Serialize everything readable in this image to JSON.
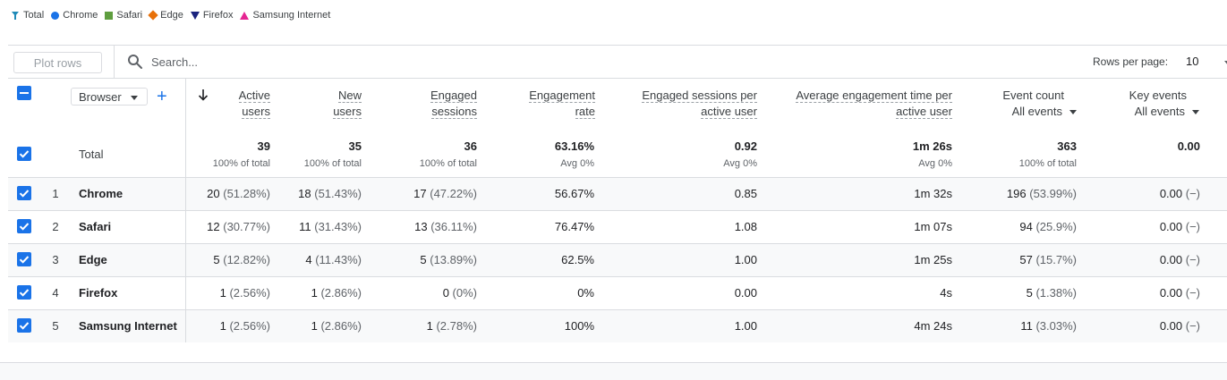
{
  "legend": [
    {
      "label": "Total",
      "marker": "total-pin-icon",
      "color": "#1e8ab8"
    },
    {
      "label": "Chrome",
      "marker": "circle",
      "color": "#1a73e8"
    },
    {
      "label": "Safari",
      "marker": "square",
      "color": "#5f9e3f"
    },
    {
      "label": "Edge",
      "marker": "diamond",
      "color": "#e8710a"
    },
    {
      "label": "Firefox",
      "marker": "triangle-down",
      "color": "#1a237e"
    },
    {
      "label": "Samsung Internet",
      "marker": "triangle-up",
      "color": "#e52592"
    }
  ],
  "toolbar": {
    "plot_rows_label": "Plot rows",
    "search_placeholder": "Search...",
    "rows_per_page_label": "Rows per page:",
    "rows_per_page_value": "10"
  },
  "dimension": {
    "label": "Browser"
  },
  "columns": [
    {
      "line1": "Active",
      "line2": "users"
    },
    {
      "line1": "New",
      "line2": "users"
    },
    {
      "line1": "Engaged",
      "line2": "sessions"
    },
    {
      "line1": "Engagement",
      "line2": "rate"
    },
    {
      "line1": "Engaged sessions per",
      "line2": "active user"
    },
    {
      "line1": "Average engagement time per",
      "line2": "active user"
    },
    {
      "line1": "Event count",
      "select": "All events"
    },
    {
      "line1": "Key events",
      "select": "All events"
    }
  ],
  "totals": {
    "label": "Total",
    "values": [
      "39",
      "35",
      "36",
      "63.16%",
      "0.92",
      "1m 26s",
      "363",
      "0.00"
    ],
    "subs": [
      "100% of total",
      "100% of total",
      "100% of total",
      "Avg 0%",
      "Avg 0%",
      "Avg 0%",
      "100% of total",
      ""
    ]
  },
  "rows": [
    {
      "rank": "1",
      "name": "Chrome",
      "cells": [
        {
          "v": "20",
          "p": "(51.28%)"
        },
        {
          "v": "18",
          "p": "(51.43%)"
        },
        {
          "v": "17",
          "p": "(47.22%)"
        },
        {
          "v": "56.67%",
          "p": ""
        },
        {
          "v": "0.85",
          "p": ""
        },
        {
          "v": "1m 32s",
          "p": ""
        },
        {
          "v": "196",
          "p": "(53.99%)"
        },
        {
          "v": "0.00",
          "p": "(−)"
        }
      ]
    },
    {
      "rank": "2",
      "name": "Safari",
      "cells": [
        {
          "v": "12",
          "p": "(30.77%)"
        },
        {
          "v": "11",
          "p": "(31.43%)"
        },
        {
          "v": "13",
          "p": "(36.11%)"
        },
        {
          "v": "76.47%",
          "p": ""
        },
        {
          "v": "1.08",
          "p": ""
        },
        {
          "v": "1m 07s",
          "p": ""
        },
        {
          "v": "94",
          "p": "(25.9%)"
        },
        {
          "v": "0.00",
          "p": "(−)"
        }
      ]
    },
    {
      "rank": "3",
      "name": "Edge",
      "cells": [
        {
          "v": "5",
          "p": "(12.82%)"
        },
        {
          "v": "4",
          "p": "(11.43%)"
        },
        {
          "v": "5",
          "p": "(13.89%)"
        },
        {
          "v": "62.5%",
          "p": ""
        },
        {
          "v": "1.00",
          "p": ""
        },
        {
          "v": "1m 25s",
          "p": ""
        },
        {
          "v": "57",
          "p": "(15.7%)"
        },
        {
          "v": "0.00",
          "p": "(−)"
        }
      ]
    },
    {
      "rank": "4",
      "name": "Firefox",
      "cells": [
        {
          "v": "1",
          "p": "(2.56%)"
        },
        {
          "v": "1",
          "p": "(2.86%)"
        },
        {
          "v": "0",
          "p": "(0%)"
        },
        {
          "v": "0%",
          "p": ""
        },
        {
          "v": "0.00",
          "p": ""
        },
        {
          "v": "4s",
          "p": ""
        },
        {
          "v": "5",
          "p": "(1.38%)"
        },
        {
          "v": "0.00",
          "p": "(−)"
        }
      ]
    },
    {
      "rank": "5",
      "name": "Samsung Internet",
      "cells": [
        {
          "v": "1",
          "p": "(2.56%)"
        },
        {
          "v": "1",
          "p": "(2.86%)"
        },
        {
          "v": "1",
          "p": "(2.78%)"
        },
        {
          "v": "100%",
          "p": ""
        },
        {
          "v": "1.00",
          "p": ""
        },
        {
          "v": "4m 24s",
          "p": ""
        },
        {
          "v": "11",
          "p": "(3.03%)"
        },
        {
          "v": "0.00",
          "p": "(−)"
        }
      ]
    }
  ],
  "colors": {
    "accent": "#1a73e8",
    "border": "#dadce0",
    "row_alt": "#f8f9fa"
  }
}
